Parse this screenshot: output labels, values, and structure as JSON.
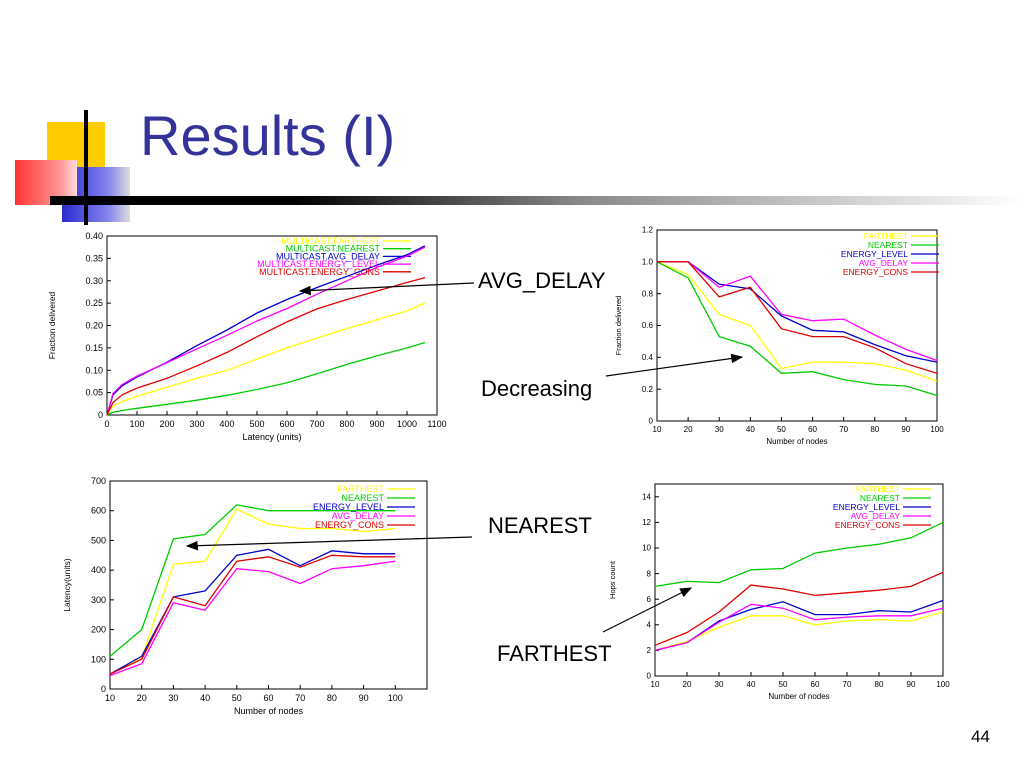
{
  "slide": {
    "title": "Results (I)",
    "page_number": "44"
  },
  "callouts": {
    "avg_delay": "AVG_DELAY",
    "decreasing": "Decreasing",
    "nearest": "NEAREST",
    "farthest": "FARTHEST"
  },
  "colors": {
    "title": "#333399",
    "farthest": "#ffff00",
    "nearest": "#00cc00",
    "energy_level": "#0000cc",
    "avg_delay": "#ff00ff",
    "energy_cons": "#dd0000"
  },
  "chart_data": [
    {
      "id": "c1",
      "type": "line",
      "title": "",
      "xlabel": "Latency (units)",
      "ylabel": "Fraction delivered",
      "xlim": [
        0,
        1100
      ],
      "ylim": [
        0,
        0.4
      ],
      "xticks": [
        0,
        100,
        200,
        300,
        400,
        500,
        600,
        700,
        800,
        900,
        1000,
        1100
      ],
      "yticks": [
        0,
        0.05,
        0.1,
        0.15,
        0.2,
        0.25,
        0.3,
        0.35,
        0.4
      ],
      "ydecimals": 2,
      "legend": "top-right",
      "series": [
        {
          "name": "MULTICAST.FARTHEST",
          "color": "#ffff00",
          "x": [
            0,
            20,
            50,
            100,
            150,
            200,
            300,
            400,
            500,
            600,
            700,
            800,
            900,
            1000,
            1060
          ],
          "y": [
            0,
            0.02,
            0.03,
            0.042,
            0.052,
            0.062,
            0.082,
            0.1,
            0.125,
            0.15,
            0.172,
            0.193,
            0.213,
            0.233,
            0.25
          ]
        },
        {
          "name": "MULTICAST.NEAREST",
          "color": "#00cc00",
          "x": [
            0,
            20,
            50,
            100,
            200,
            300,
            400,
            500,
            600,
            700,
            800,
            900,
            1000,
            1060
          ],
          "y": [
            0,
            0.006,
            0.01,
            0.015,
            0.024,
            0.033,
            0.044,
            0.057,
            0.072,
            0.092,
            0.113,
            0.132,
            0.15,
            0.162
          ]
        },
        {
          "name": "MULTICAST.AVG_DELAY",
          "color": "#0000cc",
          "x": [
            0,
            20,
            50,
            100,
            200,
            300,
            400,
            500,
            600,
            700,
            800,
            900,
            1000,
            1060
          ],
          "y": [
            0,
            0.045,
            0.065,
            0.085,
            0.118,
            0.155,
            0.19,
            0.228,
            0.258,
            0.285,
            0.31,
            0.335,
            0.358,
            0.378
          ]
        },
        {
          "name": "MULTICAST.ENERGY_LEVEL",
          "color": "#ff00ff",
          "x": [
            0,
            20,
            50,
            100,
            200,
            300,
            400,
            500,
            600,
            700,
            800,
            900,
            1000,
            1060
          ],
          "y": [
            0,
            0.048,
            0.068,
            0.087,
            0.117,
            0.148,
            0.178,
            0.21,
            0.238,
            0.27,
            0.3,
            0.33,
            0.355,
            0.375
          ]
        },
        {
          "name": "MULTICAST.ENERGY_CONS",
          "color": "#dd0000",
          "x": [
            0,
            20,
            50,
            100,
            200,
            300,
            400,
            500,
            600,
            700,
            800,
            900,
            1000,
            1060
          ],
          "y": [
            0,
            0.028,
            0.045,
            0.06,
            0.082,
            0.11,
            0.14,
            0.175,
            0.208,
            0.237,
            0.258,
            0.277,
            0.296,
            0.307
          ]
        }
      ]
    },
    {
      "id": "c2",
      "type": "line",
      "title": "",
      "xlabel": "Number of nodes",
      "ylabel": "Fraction delivered",
      "xlim": [
        10,
        100
      ],
      "ylim": [
        0,
        1.2
      ],
      "xticks": [
        10,
        20,
        30,
        40,
        50,
        60,
        70,
        80,
        90,
        100
      ],
      "yticks": [
        0,
        0.2,
        0.4,
        0.6,
        0.8,
        1,
        1.2
      ],
      "ydecimals": 1,
      "legend": "top-right",
      "series": [
        {
          "name": "FARTHEST",
          "color": "#ffff00",
          "x": [
            10,
            20,
            30,
            40,
            50,
            60,
            70,
            80,
            90,
            100
          ],
          "y": [
            1,
            0.92,
            0.67,
            0.6,
            0.33,
            0.37,
            0.37,
            0.36,
            0.32,
            0.25
          ]
        },
        {
          "name": "NEAREST",
          "color": "#00cc00",
          "x": [
            10,
            20,
            30,
            40,
            50,
            60,
            70,
            80,
            90,
            100
          ],
          "y": [
            1,
            0.9,
            0.53,
            0.47,
            0.3,
            0.31,
            0.26,
            0.23,
            0.22,
            0.16
          ]
        },
        {
          "name": "ENERGY_LEVEL",
          "color": "#0000cc",
          "x": [
            10,
            20,
            30,
            40,
            50,
            60,
            70,
            80,
            90,
            100
          ],
          "y": [
            1,
            1,
            0.86,
            0.83,
            0.66,
            0.57,
            0.56,
            0.48,
            0.41,
            0.37
          ]
        },
        {
          "name": "AVG_DELAY",
          "color": "#ff00ff",
          "x": [
            10,
            20,
            30,
            40,
            50,
            60,
            70,
            80,
            90,
            100
          ],
          "y": [
            1,
            1,
            0.84,
            0.91,
            0.67,
            0.63,
            0.64,
            0.54,
            0.45,
            0.38
          ]
        },
        {
          "name": "ENERGY_CONS",
          "color": "#dd0000",
          "x": [
            10,
            20,
            30,
            40,
            50,
            60,
            70,
            80,
            90,
            100
          ],
          "y": [
            1,
            1,
            0.78,
            0.84,
            0.58,
            0.53,
            0.53,
            0.46,
            0.36,
            0.3
          ]
        }
      ]
    },
    {
      "id": "c3",
      "type": "line",
      "title": "",
      "xlabel": "Number of nodes",
      "ylabel": "Latency(units)",
      "xlim": [
        10,
        110
      ],
      "ylim": [
        0,
        700
      ],
      "xticks": [
        10,
        20,
        30,
        40,
        50,
        60,
        70,
        80,
        90,
        100
      ],
      "yticks": [
        0,
        100,
        200,
        300,
        400,
        500,
        600,
        700
      ],
      "ydecimals": 0,
      "legend": "top-right",
      "series": [
        {
          "name": "FARTHEST",
          "color": "#ffff00",
          "x": [
            10,
            20,
            30,
            40,
            50,
            60,
            70,
            80,
            90,
            100
          ],
          "y": [
            50,
            105,
            420,
            430,
            605,
            555,
            540,
            540,
            530,
            540
          ]
        },
        {
          "name": "NEAREST",
          "color": "#00cc00",
          "x": [
            10,
            20,
            30,
            40,
            50,
            60,
            70,
            80,
            90,
            100
          ],
          "y": [
            110,
            200,
            505,
            520,
            620,
            600,
            600,
            600,
            600,
            600
          ]
        },
        {
          "name": "ENERGY_LEVEL",
          "color": "#0000cc",
          "x": [
            10,
            20,
            30,
            40,
            50,
            60,
            70,
            80,
            90,
            100
          ],
          "y": [
            50,
            110,
            310,
            330,
            450,
            470,
            415,
            465,
            455,
            455
          ]
        },
        {
          "name": "AVG_DELAY",
          "color": "#ff00ff",
          "x": [
            10,
            20,
            30,
            40,
            50,
            60,
            70,
            80,
            90,
            100
          ],
          "y": [
            45,
            85,
            290,
            265,
            405,
            395,
            355,
            405,
            415,
            430
          ]
        },
        {
          "name": "ENERGY_CONS",
          "color": "#dd0000",
          "x": [
            10,
            20,
            30,
            40,
            50,
            60,
            70,
            80,
            90,
            100
          ],
          "y": [
            50,
            100,
            310,
            280,
            430,
            445,
            410,
            450,
            445,
            445
          ]
        }
      ]
    },
    {
      "id": "c4",
      "type": "line",
      "title": "",
      "xlabel": "Number of nodes",
      "ylabel": "Hops count",
      "xlim": [
        10,
        100
      ],
      "ylim": [
        0,
        15
      ],
      "xticks": [
        10,
        20,
        30,
        40,
        50,
        60,
        70,
        80,
        90,
        100
      ],
      "yticks": [
        0,
        2,
        4,
        6,
        8,
        10,
        12,
        14
      ],
      "ydecimals": 0,
      "legend": "top-right",
      "series": [
        {
          "name": "FARTHEST",
          "color": "#ffff00",
          "x": [
            10,
            20,
            30,
            40,
            50,
            60,
            70,
            80,
            90,
            100
          ],
          "y": [
            2,
            2.7,
            3.8,
            4.7,
            4.7,
            4,
            4.3,
            4.4,
            4.3,
            5
          ]
        },
        {
          "name": "NEAREST",
          "color": "#00cc00",
          "x": [
            10,
            20,
            30,
            40,
            50,
            60,
            70,
            80,
            90,
            100
          ],
          "y": [
            7,
            7.4,
            7.3,
            8.3,
            8.4,
            9.6,
            10,
            10.3,
            10.8,
            12
          ]
        },
        {
          "name": "ENERGY_LEVEL",
          "color": "#0000cc",
          "x": [
            10,
            20,
            30,
            40,
            50,
            60,
            70,
            80,
            90,
            100
          ],
          "y": [
            2,
            2.6,
            4.3,
            5.2,
            5.8,
            4.8,
            4.8,
            5.1,
            5,
            5.9
          ]
        },
        {
          "name": "AVG_DELAY",
          "color": "#ff00ff",
          "x": [
            10,
            20,
            30,
            40,
            50,
            60,
            70,
            80,
            90,
            100
          ],
          "y": [
            2,
            2.6,
            4.2,
            5.6,
            5.3,
            4.4,
            4.6,
            4.7,
            4.7,
            5.3
          ]
        },
        {
          "name": "ENERGY_CONS",
          "color": "#dd0000",
          "x": [
            10,
            20,
            30,
            40,
            50,
            60,
            70,
            80,
            90,
            100
          ],
          "y": [
            2.4,
            3.4,
            5,
            7.1,
            6.8,
            6.3,
            6.5,
            6.7,
            7,
            8.1
          ]
        }
      ]
    }
  ]
}
